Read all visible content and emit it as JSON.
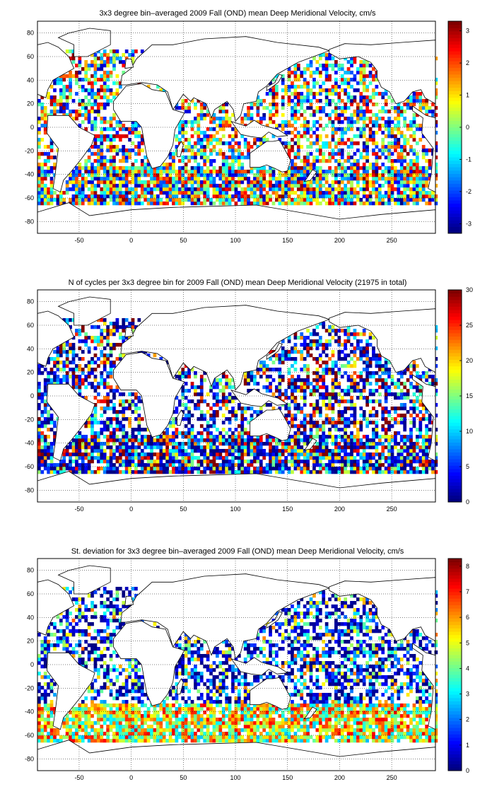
{
  "chart_data": [
    {
      "type": "heatmap",
      "title": "3x3 degree bin–averaged 2009 Fall (OND) mean Deep Meridional Velocity, cm/s",
      "xlabel": "",
      "ylabel": "",
      "xlim": [
        -90,
        292
      ],
      "ylim": [
        -90,
        90
      ],
      "x_ticks": [
        -50,
        0,
        50,
        100,
        150,
        200,
        250
      ],
      "y_ticks": [
        80,
        60,
        40,
        20,
        0,
        -20,
        -40,
        -60,
        -80
      ],
      "grid": true,
      "bin_size_deg": 3,
      "colormap": "jet",
      "clim": [
        -3.3,
        3.3
      ],
      "colorbar_ticks": [
        3,
        2,
        1,
        0,
        -1,
        -2,
        -3
      ],
      "description": "Mean deep meridional velocity per 3x3 degree bin; strong positive/negative values along the Southern Ocean band (~40-60S) and scattered mixed signs elsewhere",
      "summary_values": {
        "typical_range": [
          -3.3,
          3.3
        ]
      }
    },
    {
      "type": "heatmap",
      "title": "N of cycles per 3x3 degree bin for 2009 Fall (OND) mean Deep Meridional Velocity (21975 in total)",
      "xlabel": "",
      "ylabel": "",
      "xlim": [
        -90,
        292
      ],
      "ylim": [
        -90,
        90
      ],
      "x_ticks": [
        -50,
        0,
        50,
        100,
        150,
        200,
        250
      ],
      "y_ticks": [
        80,
        60,
        40,
        20,
        0,
        -20,
        -40,
        -60,
        -80
      ],
      "grid": true,
      "bin_size_deg": 3,
      "colormap": "jet",
      "clim": [
        0,
        30
      ],
      "colorbar_ticks": [
        30,
        25,
        20,
        15,
        10,
        5,
        0
      ],
      "total_cycles": 21975
    },
    {
      "type": "heatmap",
      "title": "St. deviation for 3x3 degree bin–averaged 2009 Fall (OND) mean Deep Meridional Velocity, cm/s",
      "xlabel": "",
      "ylabel": "",
      "xlim": [
        -90,
        292
      ],
      "ylim": [
        -90,
        90
      ],
      "x_ticks": [
        -50,
        0,
        50,
        100,
        150,
        200,
        250
      ],
      "y_ticks": [
        80,
        60,
        40,
        20,
        0,
        -20,
        -40,
        -60,
        -80
      ],
      "grid": true,
      "bin_size_deg": 3,
      "colormap": "jet",
      "clim": [
        0,
        8.3
      ],
      "colorbar_ticks": [
        8,
        7,
        6,
        5,
        4,
        3,
        2,
        1,
        0
      ]
    }
  ]
}
